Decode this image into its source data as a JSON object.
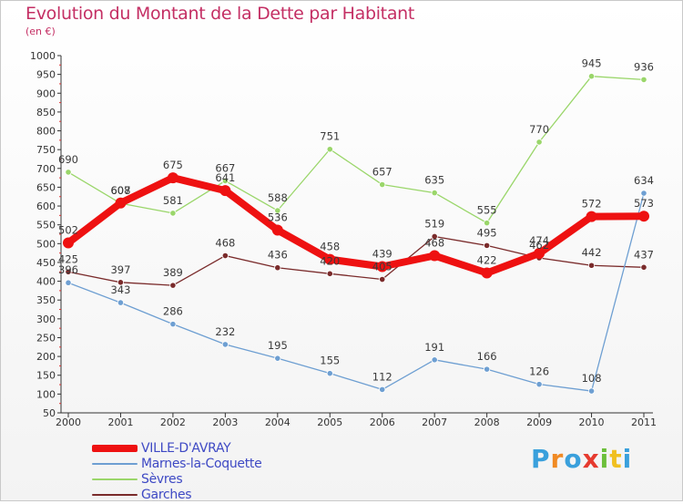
{
  "title": "Evolution du Montant de la Dette par Habitant",
  "subtitle": "(en €)",
  "logo_text": "Proxiti",
  "chart_data": {
    "type": "line",
    "x": [
      "2000",
      "2001",
      "2002",
      "2003",
      "2004",
      "2005",
      "2006",
      "2007",
      "2008",
      "2009",
      "2010",
      "2011"
    ],
    "ylim": [
      50,
      1000
    ],
    "yticks": [
      50,
      100,
      150,
      200,
      250,
      300,
      350,
      400,
      450,
      500,
      550,
      600,
      650,
      700,
      750,
      800,
      850,
      900,
      950,
      1000
    ],
    "grid": false,
    "legend_position": "bottom-left",
    "series": [
      {
        "name": "VILLE-D'AVRAY",
        "color": "#ee1111",
        "values": [
          502,
          608,
          675,
          641,
          536,
          458,
          439,
          468,
          422,
          474,
          572,
          573
        ],
        "labels": [
          "502",
          "608",
          "675",
          "641",
          "536",
          "458",
          "439",
          "468",
          "422",
          "474",
          "572",
          "573"
        ]
      },
      {
        "name": "Marnes-la-Coquette",
        "color": "#6e9fd2",
        "values": [
          396,
          343,
          286,
          232,
          195,
          155,
          112,
          191,
          166,
          126,
          108,
          634
        ],
        "labels": [
          "396",
          "343",
          "286",
          "232",
          "195",
          "155",
          "112",
          "191",
          "166",
          "126",
          "108",
          "634"
        ]
      },
      {
        "name": "Sèvres",
        "color": "#9ad66a",
        "values": [
          690,
          607,
          581,
          667,
          588,
          751,
          657,
          635,
          555,
          770,
          945,
          936
        ],
        "labels": [
          "690",
          "607",
          "581",
          "667",
          "588",
          "751",
          "657",
          "635",
          "555",
          "770",
          "945",
          "936"
        ]
      },
      {
        "name": "Garches",
        "color": "#7a2b2b",
        "values": [
          425,
          397,
          389,
          468,
          436,
          420,
          405,
          519,
          495,
          462,
          442,
          437
        ],
        "labels": [
          "425",
          "397",
          "389",
          "468",
          "436",
          "420",
          "405",
          "519",
          "495",
          "462",
          "442",
          "437"
        ]
      }
    ]
  }
}
